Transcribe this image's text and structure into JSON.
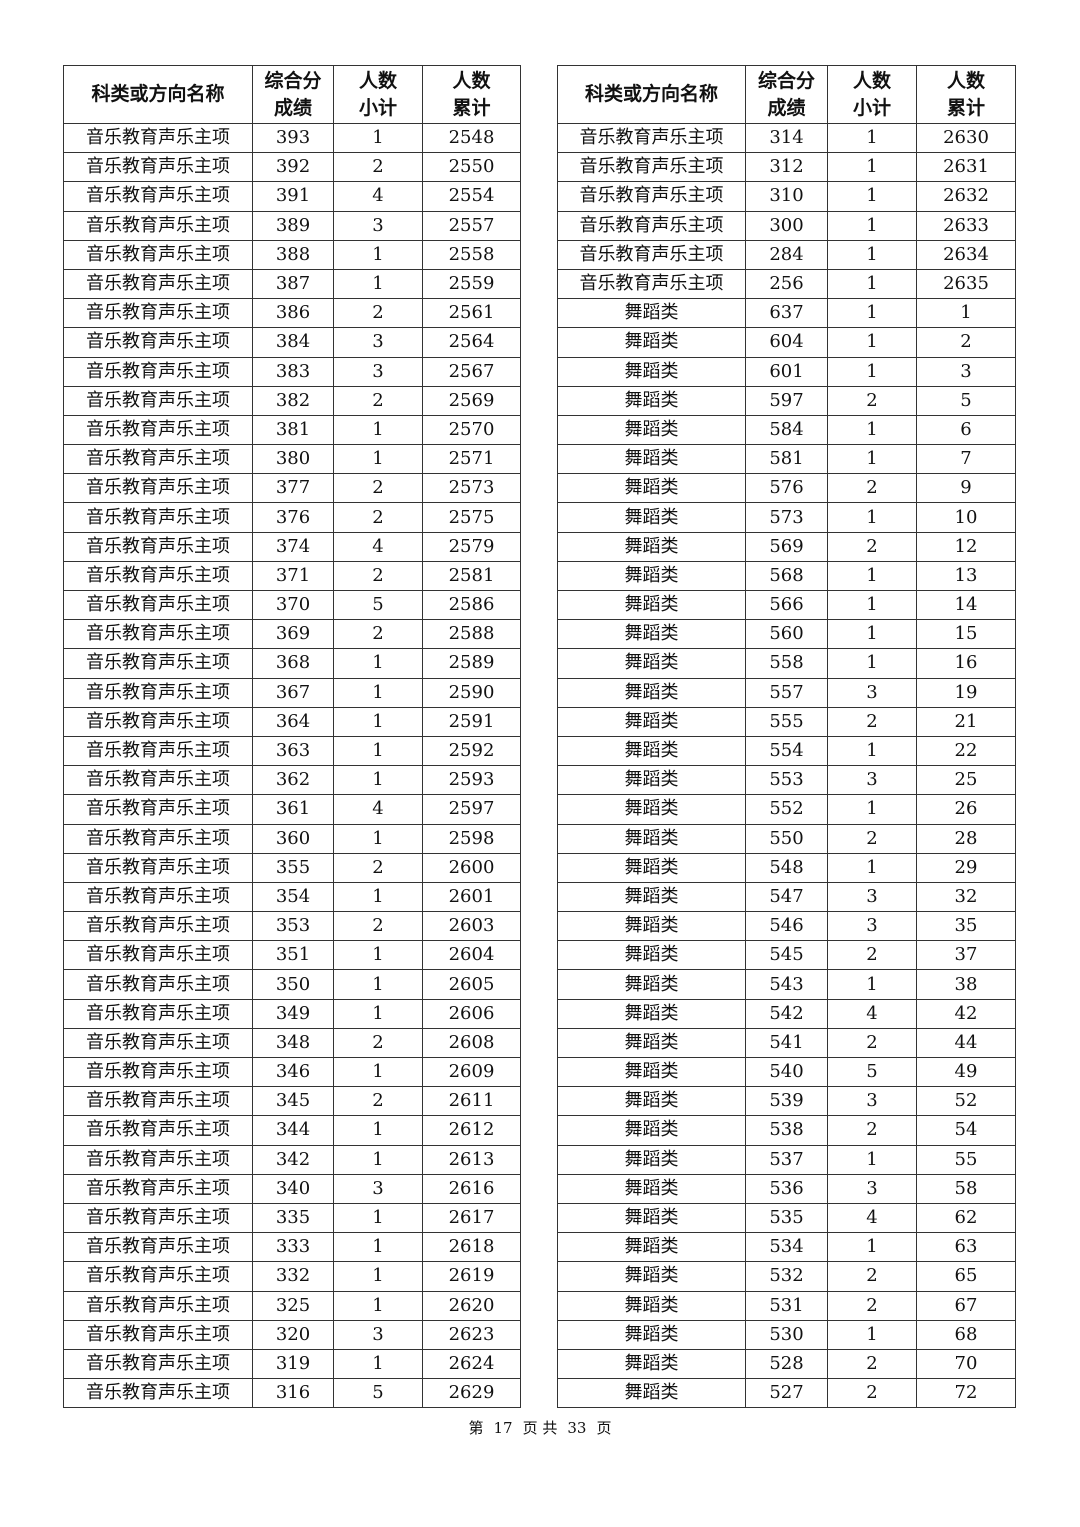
{
  "headers": [
    "科类或方向名称",
    "综合分成绩",
    "人数小计",
    "人数累计"
  ],
  "headers_lines": [
    [
      "科类或方向名称"
    ],
    [
      "综合分",
      "成绩"
    ],
    [
      "人数",
      "小计"
    ],
    [
      "人数",
      "累计"
    ]
  ],
  "left_table": {
    "rows": [
      [
        "音乐教育声乐主项",
        "393",
        "1",
        "2548"
      ],
      [
        "音乐教育声乐主项",
        "392",
        "2",
        "2550"
      ],
      [
        "音乐教育声乐主项",
        "391",
        "4",
        "2554"
      ],
      [
        "音乐教育声乐主项",
        "389",
        "3",
        "2557"
      ],
      [
        "音乐教育声乐主项",
        "388",
        "1",
        "2558"
      ],
      [
        "音乐教育声乐主项",
        "387",
        "1",
        "2559"
      ],
      [
        "音乐教育声乐主项",
        "386",
        "2",
        "2561"
      ],
      [
        "音乐教育声乐主项",
        "384",
        "3",
        "2564"
      ],
      [
        "音乐教育声乐主项",
        "383",
        "3",
        "2567"
      ],
      [
        "音乐教育声乐主项",
        "382",
        "2",
        "2569"
      ],
      [
        "音乐教育声乐主项",
        "381",
        "1",
        "2570"
      ],
      [
        "音乐教育声乐主项",
        "380",
        "1",
        "2571"
      ],
      [
        "音乐教育声乐主项",
        "377",
        "2",
        "2573"
      ],
      [
        "音乐教育声乐主项",
        "376",
        "2",
        "2575"
      ],
      [
        "音乐教育声乐主项",
        "374",
        "4",
        "2579"
      ],
      [
        "音乐教育声乐主项",
        "371",
        "2",
        "2581"
      ],
      [
        "音乐教育声乐主项",
        "370",
        "5",
        "2586"
      ],
      [
        "音乐教育声乐主项",
        "369",
        "2",
        "2588"
      ],
      [
        "音乐教育声乐主项",
        "368",
        "1",
        "2589"
      ],
      [
        "音乐教育声乐主项",
        "367",
        "1",
        "2590"
      ],
      [
        "音乐教育声乐主项",
        "364",
        "1",
        "2591"
      ],
      [
        "音乐教育声乐主项",
        "363",
        "1",
        "2592"
      ],
      [
        "音乐教育声乐主项",
        "362",
        "1",
        "2593"
      ],
      [
        "音乐教育声乐主项",
        "361",
        "4",
        "2597"
      ],
      [
        "音乐教育声乐主项",
        "360",
        "1",
        "2598"
      ],
      [
        "音乐教育声乐主项",
        "355",
        "2",
        "2600"
      ],
      [
        "音乐教育声乐主项",
        "354",
        "1",
        "2601"
      ],
      [
        "音乐教育声乐主项",
        "353",
        "2",
        "2603"
      ],
      [
        "音乐教育声乐主项",
        "351",
        "1",
        "2604"
      ],
      [
        "音乐教育声乐主项",
        "350",
        "1",
        "2605"
      ],
      [
        "音乐教育声乐主项",
        "349",
        "1",
        "2606"
      ],
      [
        "音乐教育声乐主项",
        "348",
        "2",
        "2608"
      ],
      [
        "音乐教育声乐主项",
        "346",
        "1",
        "2609"
      ],
      [
        "音乐教育声乐主项",
        "345",
        "2",
        "2611"
      ],
      [
        "音乐教育声乐主项",
        "344",
        "1",
        "2612"
      ],
      [
        "音乐教育声乐主项",
        "342",
        "1",
        "2613"
      ],
      [
        "音乐教育声乐主项",
        "340",
        "3",
        "2616"
      ],
      [
        "音乐教育声乐主项",
        "335",
        "1",
        "2617"
      ],
      [
        "音乐教育声乐主项",
        "333",
        "1",
        "2618"
      ],
      [
        "音乐教育声乐主项",
        "332",
        "1",
        "2619"
      ],
      [
        "音乐教育声乐主项",
        "325",
        "1",
        "2620"
      ],
      [
        "音乐教育声乐主项",
        "320",
        "3",
        "2623"
      ],
      [
        "音乐教育声乐主项",
        "319",
        "1",
        "2624"
      ],
      [
        "音乐教育声乐主项",
        "316",
        "5",
        "2629"
      ]
    ]
  },
  "right_table": {
    "rows": [
      [
        "音乐教育声乐主项",
        "314",
        "1",
        "2630"
      ],
      [
        "音乐教育声乐主项",
        "312",
        "1",
        "2631"
      ],
      [
        "音乐教育声乐主项",
        "310",
        "1",
        "2632"
      ],
      [
        "音乐教育声乐主项",
        "300",
        "1",
        "2633"
      ],
      [
        "音乐教育声乐主项",
        "284",
        "1",
        "2634"
      ],
      [
        "音乐教育声乐主项",
        "256",
        "1",
        "2635"
      ],
      [
        "舞蹈类",
        "637",
        "1",
        "1"
      ],
      [
        "舞蹈类",
        "604",
        "1",
        "2"
      ],
      [
        "舞蹈类",
        "601",
        "1",
        "3"
      ],
      [
        "舞蹈类",
        "597",
        "2",
        "5"
      ],
      [
        "舞蹈类",
        "584",
        "1",
        "6"
      ],
      [
        "舞蹈类",
        "581",
        "1",
        "7"
      ],
      [
        "舞蹈类",
        "576",
        "2",
        "9"
      ],
      [
        "舞蹈类",
        "573",
        "1",
        "10"
      ],
      [
        "舞蹈类",
        "569",
        "2",
        "12"
      ],
      [
        "舞蹈类",
        "568",
        "1",
        "13"
      ],
      [
        "舞蹈类",
        "566",
        "1",
        "14"
      ],
      [
        "舞蹈类",
        "560",
        "1",
        "15"
      ],
      [
        "舞蹈类",
        "558",
        "1",
        "16"
      ],
      [
        "舞蹈类",
        "557",
        "3",
        "19"
      ],
      [
        "舞蹈类",
        "555",
        "2",
        "21"
      ],
      [
        "舞蹈类",
        "554",
        "1",
        "22"
      ],
      [
        "舞蹈类",
        "553",
        "3",
        "25"
      ],
      [
        "舞蹈类",
        "552",
        "1",
        "26"
      ],
      [
        "舞蹈类",
        "550",
        "2",
        "28"
      ],
      [
        "舞蹈类",
        "548",
        "1",
        "29"
      ],
      [
        "舞蹈类",
        "547",
        "3",
        "32"
      ],
      [
        "舞蹈类",
        "546",
        "3",
        "35"
      ],
      [
        "舞蹈类",
        "545",
        "2",
        "37"
      ],
      [
        "舞蹈类",
        "543",
        "1",
        "38"
      ],
      [
        "舞蹈类",
        "542",
        "4",
        "42"
      ],
      [
        "舞蹈类",
        "541",
        "2",
        "44"
      ],
      [
        "舞蹈类",
        "540",
        "5",
        "49"
      ],
      [
        "舞蹈类",
        "539",
        "3",
        "52"
      ],
      [
        "舞蹈类",
        "538",
        "2",
        "54"
      ],
      [
        "舞蹈类",
        "537",
        "1",
        "55"
      ],
      [
        "舞蹈类",
        "536",
        "3",
        "58"
      ],
      [
        "舞蹈类",
        "535",
        "4",
        "62"
      ],
      [
        "舞蹈类",
        "534",
        "1",
        "63"
      ],
      [
        "舞蹈类",
        "532",
        "2",
        "65"
      ],
      [
        "舞蹈类",
        "531",
        "2",
        "67"
      ],
      [
        "舞蹈类",
        "530",
        "1",
        "68"
      ],
      [
        "舞蹈类",
        "528",
        "2",
        "70"
      ],
      [
        "舞蹈类",
        "527",
        "2",
        "72"
      ]
    ]
  },
  "footer": {
    "prefix": "第",
    "page": "17",
    "mid": "页 共",
    "total": "33",
    "suffix": "页"
  }
}
